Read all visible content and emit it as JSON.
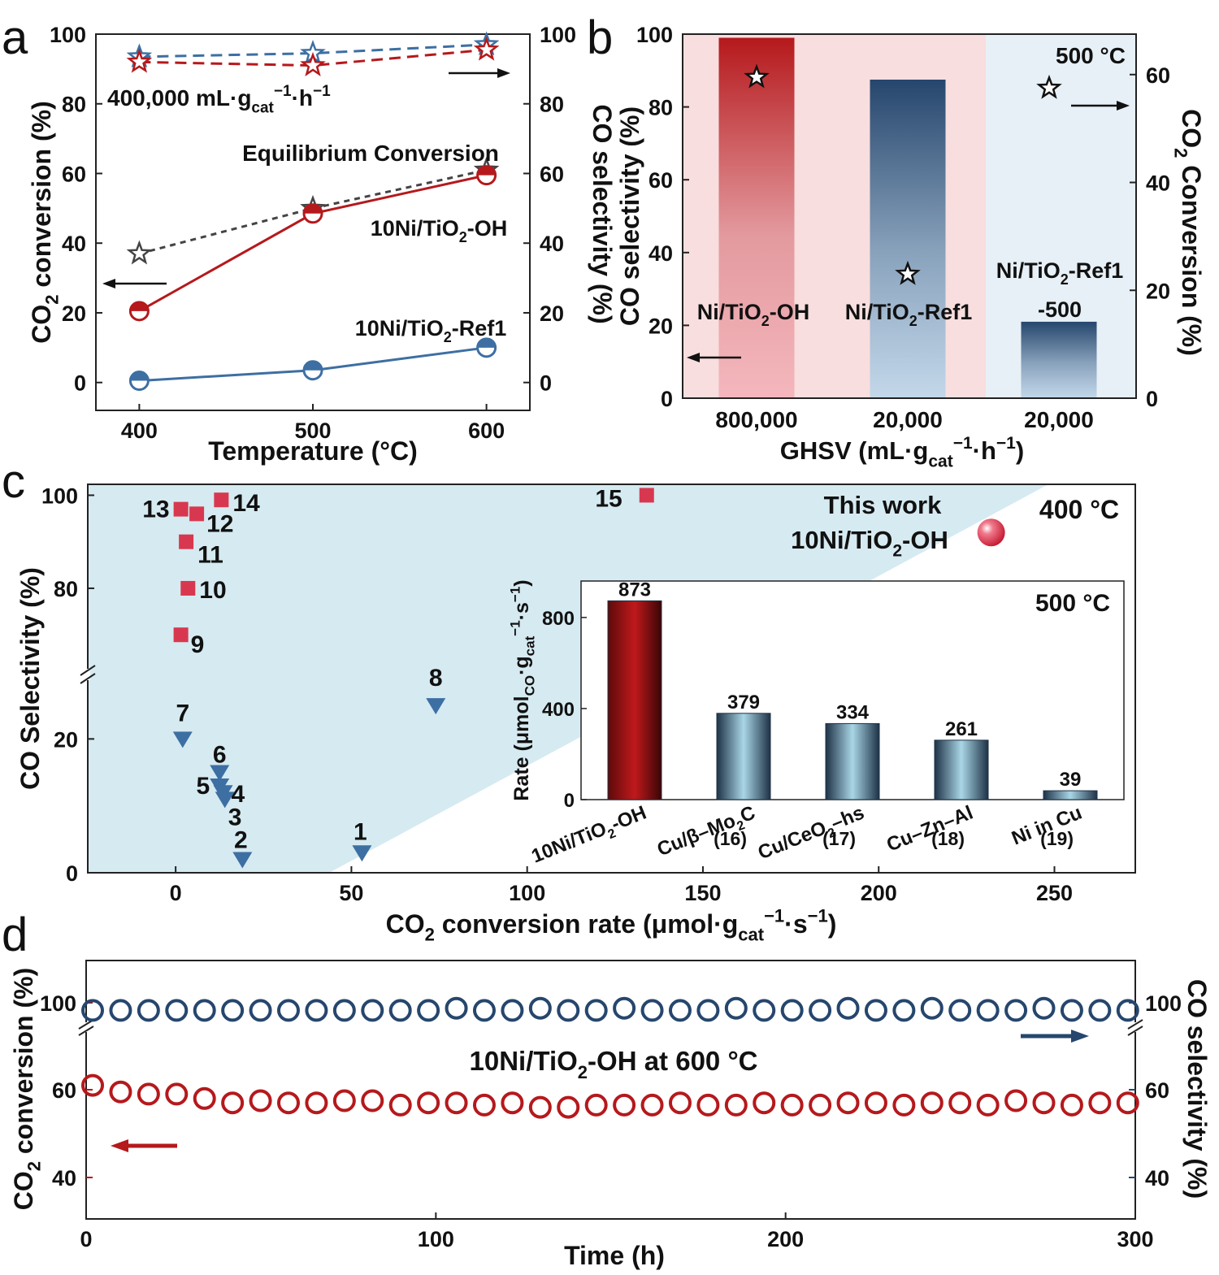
{
  "panel_letters": {
    "a": "a",
    "b": "b",
    "c": "c",
    "d": "d"
  },
  "colors": {
    "red": "#b5191c",
    "blue": "#3d6fa3",
    "navy": "#26466d",
    "gray": "#444444",
    "pink_square": "#d8384f",
    "light_blue_bg": "#d6eaf1",
    "light_pink_bg": "#f8dede"
  },
  "chart_data": [
    {
      "id": "a",
      "type": "line",
      "xlabel": "Temperature (°C)",
      "ylabel_left": {
        "main": "CO",
        "sub": "2",
        "rest": " conversion (%)"
      },
      "ylabel_right": "CO selectivity (%)",
      "xlim": [
        375,
        625
      ],
      "ylim": [
        -8,
        100
      ],
      "xticks": [
        400,
        500,
        600
      ],
      "yticks": [
        0,
        20,
        40,
        60,
        80,
        100
      ],
      "series": [
        {
          "name": "Equilibrium Conversion",
          "style": "dashed",
          "marker": "star",
          "x": [
            400,
            500,
            600
          ],
          "y": [
            37,
            50,
            61
          ]
        },
        {
          "name": "10Ni/TiO2-OH",
          "name_parts": {
            "a": "10Ni/TiO",
            "sub": "2",
            "b": "-OH"
          },
          "style": "solid",
          "marker": "half-circle",
          "x": [
            400,
            500,
            600
          ],
          "y": [
            20.5,
            48.5,
            59.5
          ]
        },
        {
          "name": "10Ni/TiO2-Ref1",
          "name_parts": {
            "a": "10Ni/TiO",
            "sub": "2",
            "b": "-Ref1"
          },
          "style": "solid",
          "marker": "half-circle",
          "x": [
            400,
            500,
            600
          ],
          "y": [
            0.5,
            3.5,
            10
          ]
        },
        {
          "name": "selectivity 10Ni/TiO2-OH",
          "style": "dashed",
          "marker": "half-star",
          "x": [
            400,
            500,
            600
          ],
          "y": [
            92,
            91,
            95.5
          ]
        },
        {
          "name": "selectivity 10Ni/TiO2-Ref1",
          "style": "dashed",
          "marker": "half-star",
          "x": [
            400,
            500,
            600
          ],
          "y": [
            93.5,
            94.5,
            97
          ]
        }
      ],
      "annotation": {
        "a": "400,000 mL·g",
        "sub": "cat",
        "sup": "−1",
        "b": "·h",
        "sup2": "−1"
      }
    },
    {
      "id": "b",
      "type": "bar",
      "xlabel": {
        "a": "GHSV (mL·g",
        "sub": "cat",
        "sup": "−1",
        "b": "·h",
        "sup2": "−1",
        "c": ")"
      },
      "ylabel_left": "CO selectivity (%)",
      "ylabel_right": {
        "main": "CO",
        "sub": "2",
        "rest": " Conversion (%)"
      },
      "ylim": [
        0,
        100
      ],
      "yticks": [
        0,
        20,
        40,
        60,
        80,
        100
      ],
      "yticks_right": [
        0,
        20,
        40,
        60
      ],
      "categories": [
        "800,000",
        "20,000",
        "20,000"
      ],
      "bar_labels": [
        {
          "a": "Ni/TiO",
          "sub": "2",
          "b": "-OH"
        },
        {
          "a": "Ni/TiO",
          "sub": "2",
          "b": "-Ref1"
        },
        {
          "a": "Ni/TiO",
          "sub": "2",
          "b": "-Ref1",
          "c": "-500"
        }
      ],
      "selectivity": [
        99,
        87.5,
        21
      ],
      "conversion": [
        59.5,
        23,
        57.5
      ],
      "temperature_label": "500 °C"
    },
    {
      "id": "c",
      "type": "scatter",
      "xlabel": {
        "a": "CO",
        "sub": "2",
        "b": " conversion rate (μmol·g",
        "sub2": "cat",
        "sup": "−1",
        "c": "·s",
        "sup2": "−1",
        "d": ")"
      },
      "ylabel": "CO Selectivity (%)",
      "xlim": [
        -25,
        273
      ],
      "xticks": [
        0,
        50,
        100,
        150,
        200,
        250
      ],
      "yticks_lower": [
        0,
        20
      ],
      "yticks_upper": [
        80,
        100
      ],
      "temperature_label": "400 °C",
      "this_work": {
        "l1": "This work",
        "l2a": "10Ni/TiO",
        "l2sub": "2",
        "l2b": "-OH",
        "x": 232,
        "y": 92
      },
      "points_high": [
        {
          "label": "15",
          "x": 134,
          "y": 100
        },
        {
          "label": "14",
          "x": 13,
          "y": 99
        },
        {
          "label": "13",
          "x": 1.5,
          "y": 97
        },
        {
          "label": "12",
          "x": 6,
          "y": 96
        },
        {
          "label": "11",
          "x": 3,
          "y": 90
        },
        {
          "label": "10",
          "x": 3.5,
          "y": 80
        },
        {
          "label": "9",
          "x": 1.5,
          "y": 70
        }
      ],
      "points_low": [
        {
          "label": "8",
          "x": 74,
          "y": 25
        },
        {
          "label": "7",
          "x": 2,
          "y": 20
        },
        {
          "label": "6",
          "x": 12.5,
          "y": 15
        },
        {
          "label": "5",
          "x": 12.5,
          "y": 13
        },
        {
          "label": "4",
          "x": 13.5,
          "y": 12
        },
        {
          "label": "3",
          "x": 14,
          "y": 11
        },
        {
          "label": "2",
          "x": 19,
          "y": 2
        },
        {
          "label": "1",
          "x": 53,
          "y": 3
        }
      ],
      "inset": {
        "type": "bar",
        "temperature_label": "500 °C",
        "ylabel": {
          "a": "Rate (μmol",
          "sub": "CO",
          "b": "·g",
          "sub2": "cat",
          "sup": "−1",
          "c": "·s",
          "sup2": "−1",
          "d": ")"
        },
        "ylim": [
          0,
          960
        ],
        "yticks": [
          0,
          400,
          800
        ],
        "categories": [
          {
            "a": "10Ni/TiO",
            "sub": "2",
            "b": "-OH",
            "c": ""
          },
          {
            "a": "Cu/β–Mo",
            "sub": "2",
            "b": "C",
            "c": "(16)"
          },
          {
            "a": "Cu/CeO",
            "sub": "2",
            "b": "–hs",
            "c": "(17)"
          },
          {
            "a": "Cu–Zn–Al",
            "sub": "",
            "b": "",
            "c": "(18)"
          },
          {
            "a": "Ni in Cu",
            "sub": "",
            "b": "",
            "c": "(19)"
          }
        ],
        "values": [
          873,
          379,
          334,
          261,
          39
        ],
        "value_labels": [
          "873",
          "379",
          "334",
          "261",
          "39"
        ]
      }
    },
    {
      "id": "d",
      "type": "scatter",
      "xlabel": "Time (h)",
      "ylabel_left": {
        "main": "CO",
        "sub": "2",
        "rest": " conversion (%)"
      },
      "ylabel_right": "CO selectivity (%)",
      "xlim": [
        0,
        300
      ],
      "xticks": [
        0,
        100,
        200,
        300
      ],
      "yticks_left_low": [
        40,
        60
      ],
      "yticks_left_high": [
        100
      ],
      "label": {
        "a": "10Ni/TiO",
        "sub": "2",
        "b": "-OH at 600 °C"
      },
      "conversion": {
        "x": [
          0,
          8,
          16,
          24,
          32,
          40,
          48,
          56,
          64,
          72,
          80,
          88,
          96,
          104,
          112,
          120,
          128,
          136,
          144,
          152,
          160,
          168,
          176,
          184,
          192,
          200,
          208,
          216,
          224,
          232,
          240,
          248,
          256,
          264,
          272,
          280,
          288,
          296
        ],
        "y": [
          61,
          59.5,
          59,
          59,
          58,
          57,
          57.5,
          57,
          57,
          57.5,
          57.5,
          56.5,
          57,
          57,
          56.5,
          57,
          56,
          56,
          56.5,
          56.5,
          56.5,
          57,
          56.5,
          56.5,
          57,
          56.5,
          56.5,
          57,
          57,
          56.5,
          57,
          57,
          56.5,
          57.5,
          57,
          56.5,
          57,
          57
        ]
      },
      "selectivity": {
        "x": [
          0,
          8,
          16,
          24,
          32,
          40,
          48,
          56,
          64,
          72,
          80,
          88,
          96,
          104,
          112,
          120,
          128,
          136,
          144,
          152,
          160,
          168,
          176,
          184,
          192,
          200,
          208,
          216,
          224,
          232,
          240,
          248,
          256,
          264,
          272,
          280,
          288,
          296
        ],
        "y": [
          99,
          99,
          99,
          99,
          99,
          99,
          99,
          99,
          99,
          99,
          99,
          99,
          99,
          99.5,
          99,
          99,
          99.5,
          99,
          99,
          99.5,
          99,
          99,
          99,
          99.5,
          99,
          99,
          99,
          99.5,
          99,
          99,
          99.5,
          99,
          99,
          99,
          99.5,
          99,
          99,
          99
        ]
      }
    }
  ]
}
